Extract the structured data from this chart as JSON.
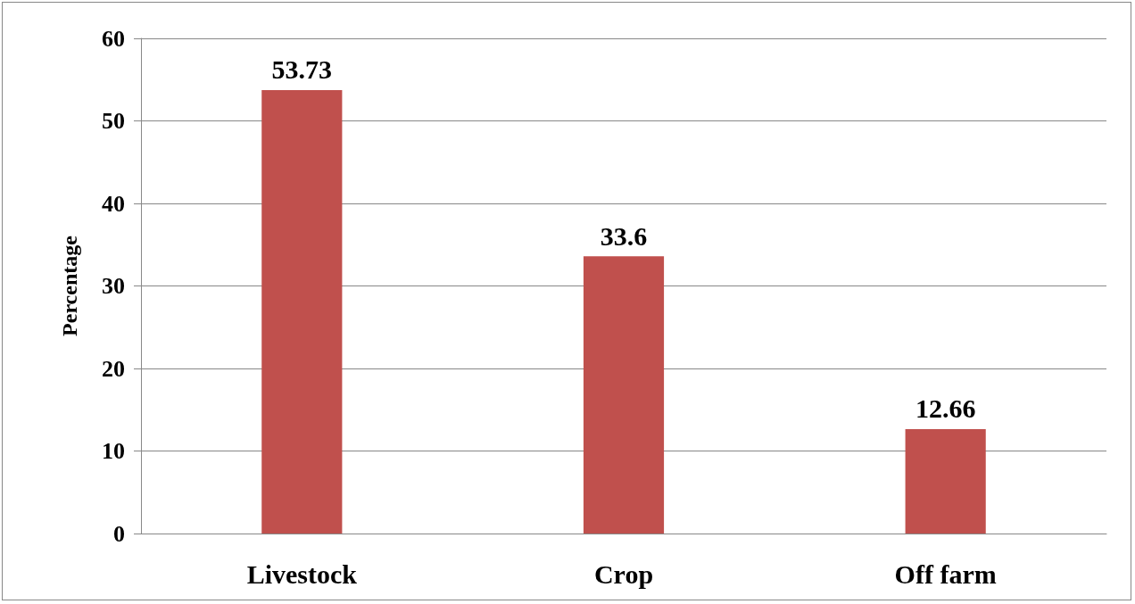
{
  "chart_data": {
    "type": "bar",
    "ylabel": "Percentage",
    "categories": [
      "Livestock",
      "Crop",
      "Off farm"
    ],
    "values": [
      53.73,
      33.6,
      12.66
    ],
    "color": "#c0504d",
    "ylim": [
      0,
      60
    ],
    "yticks": [
      0,
      10,
      20,
      30,
      40,
      50,
      60
    ],
    "grid": "y",
    "data_labels": true
  }
}
